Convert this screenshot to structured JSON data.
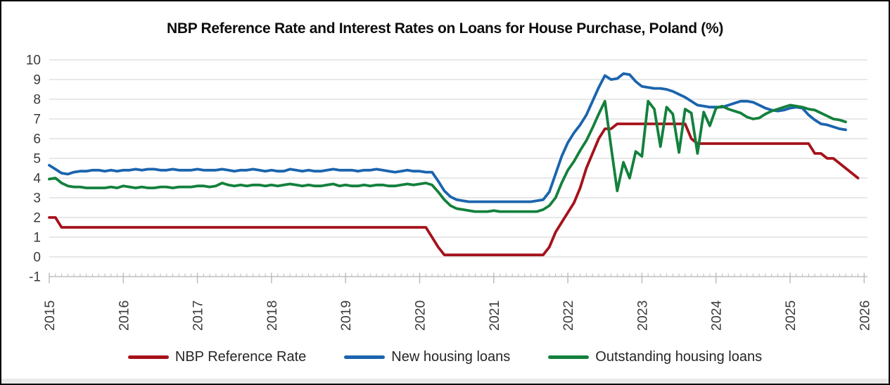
{
  "chart_data": {
    "type": "line",
    "title": "NBP Reference Rate and Interest Rates on Loans for House Purchase, Poland (%)",
    "x_start": "2015-01",
    "x_frequency": "monthly",
    "x_tick_labels": [
      "2015",
      "2016",
      "2017",
      "2018",
      "2019",
      "2020",
      "2021",
      "2022",
      "2023",
      "2024",
      "2025",
      "2026"
    ],
    "y_ticks": [
      10,
      9,
      8,
      7,
      6,
      5,
      4,
      3,
      2,
      1,
      0,
      -1
    ],
    "ylim": [
      -1,
      10
    ],
    "grid": "horizontal",
    "legend_position": "bottom",
    "axis_text_color": "#3a3a3a",
    "gridline_color": "#d9d9d9",
    "axis_line_color": "#bdbdbd",
    "series": [
      {
        "name": "NBP Reference Rate",
        "color": "#a5121b",
        "values": [
          2.0,
          2.0,
          1.5,
          1.5,
          1.5,
          1.5,
          1.5,
          1.5,
          1.5,
          1.5,
          1.5,
          1.5,
          1.5,
          1.5,
          1.5,
          1.5,
          1.5,
          1.5,
          1.5,
          1.5,
          1.5,
          1.5,
          1.5,
          1.5,
          1.5,
          1.5,
          1.5,
          1.5,
          1.5,
          1.5,
          1.5,
          1.5,
          1.5,
          1.5,
          1.5,
          1.5,
          1.5,
          1.5,
          1.5,
          1.5,
          1.5,
          1.5,
          1.5,
          1.5,
          1.5,
          1.5,
          1.5,
          1.5,
          1.5,
          1.5,
          1.5,
          1.5,
          1.5,
          1.5,
          1.5,
          1.5,
          1.5,
          1.5,
          1.5,
          1.5,
          1.5,
          1.5,
          1.0,
          0.5,
          0.1,
          0.1,
          0.1,
          0.1,
          0.1,
          0.1,
          0.1,
          0.1,
          0.1,
          0.1,
          0.1,
          0.1,
          0.1,
          0.1,
          0.1,
          0.1,
          0.1,
          0.5,
          1.25,
          1.75,
          2.25,
          2.75,
          3.5,
          4.5,
          5.25,
          6.0,
          6.5,
          6.5,
          6.75,
          6.75,
          6.75,
          6.75,
          6.75,
          6.75,
          6.75,
          6.75,
          6.75,
          6.75,
          6.75,
          6.75,
          6.0,
          5.75,
          5.75,
          5.75,
          5.75,
          5.75,
          5.75,
          5.75,
          5.75,
          5.75,
          5.75,
          5.75,
          5.75,
          5.75,
          5.75,
          5.75,
          5.75,
          5.75,
          5.75,
          5.75,
          5.25,
          5.25,
          5.0,
          5.0,
          4.75,
          4.5,
          4.25,
          4.0
        ]
      },
      {
        "name": "New housing loans",
        "color": "#1b64ae",
        "values": [
          4.65,
          4.45,
          4.25,
          4.2,
          4.3,
          4.35,
          4.35,
          4.4,
          4.4,
          4.35,
          4.4,
          4.35,
          4.4,
          4.4,
          4.45,
          4.4,
          4.45,
          4.45,
          4.4,
          4.4,
          4.45,
          4.4,
          4.4,
          4.4,
          4.45,
          4.4,
          4.4,
          4.4,
          4.45,
          4.4,
          4.35,
          4.4,
          4.4,
          4.45,
          4.4,
          4.35,
          4.4,
          4.35,
          4.35,
          4.45,
          4.4,
          4.35,
          4.4,
          4.35,
          4.35,
          4.4,
          4.45,
          4.4,
          4.4,
          4.4,
          4.35,
          4.4,
          4.4,
          4.45,
          4.4,
          4.35,
          4.3,
          4.35,
          4.4,
          4.35,
          4.35,
          4.3,
          4.3,
          3.85,
          3.35,
          3.05,
          2.9,
          2.85,
          2.8,
          2.8,
          2.8,
          2.8,
          2.8,
          2.8,
          2.8,
          2.8,
          2.8,
          2.8,
          2.8,
          2.85,
          2.9,
          3.3,
          4.2,
          5.1,
          5.8,
          6.3,
          6.7,
          7.2,
          7.9,
          8.6,
          9.2,
          9.0,
          9.05,
          9.3,
          9.25,
          8.9,
          8.65,
          8.6,
          8.55,
          8.55,
          8.5,
          8.4,
          8.25,
          8.1,
          7.9,
          7.7,
          7.65,
          7.6,
          7.6,
          7.6,
          7.7,
          7.8,
          7.9,
          7.9,
          7.85,
          7.7,
          7.55,
          7.45,
          7.4,
          7.45,
          7.55,
          7.6,
          7.55,
          7.2,
          6.95,
          6.75,
          6.7,
          6.6,
          6.5,
          6.45,
          null,
          null
        ]
      },
      {
        "name": "Outstanding housing loans",
        "color": "#13803c",
        "values": [
          3.95,
          4.0,
          3.75,
          3.6,
          3.55,
          3.55,
          3.5,
          3.5,
          3.5,
          3.5,
          3.55,
          3.5,
          3.6,
          3.55,
          3.5,
          3.55,
          3.5,
          3.5,
          3.55,
          3.55,
          3.5,
          3.55,
          3.55,
          3.55,
          3.6,
          3.6,
          3.55,
          3.6,
          3.75,
          3.65,
          3.6,
          3.65,
          3.6,
          3.65,
          3.65,
          3.6,
          3.65,
          3.6,
          3.65,
          3.7,
          3.65,
          3.6,
          3.65,
          3.6,
          3.6,
          3.65,
          3.7,
          3.6,
          3.65,
          3.6,
          3.6,
          3.65,
          3.6,
          3.65,
          3.65,
          3.6,
          3.6,
          3.65,
          3.7,
          3.65,
          3.7,
          3.75,
          3.65,
          3.3,
          2.9,
          2.6,
          2.45,
          2.4,
          2.35,
          2.3,
          2.3,
          2.3,
          2.35,
          2.3,
          2.3,
          2.3,
          2.3,
          2.3,
          2.3,
          2.3,
          2.4,
          2.6,
          3.0,
          3.75,
          4.4,
          4.85,
          5.4,
          5.9,
          6.55,
          7.25,
          7.9,
          5.6,
          3.35,
          4.8,
          4.0,
          5.35,
          5.1,
          7.9,
          7.5,
          5.6,
          7.6,
          7.25,
          5.3,
          7.5,
          7.3,
          5.25,
          7.35,
          6.65,
          7.55,
          7.65,
          7.5,
          7.4,
          7.3,
          7.1,
          7.0,
          7.05,
          7.25,
          7.4,
          7.5,
          7.6,
          7.7,
          7.65,
          7.6,
          7.5,
          7.45,
          7.3,
          7.15,
          7.0,
          6.95,
          6.85,
          null,
          null
        ]
      }
    ]
  }
}
